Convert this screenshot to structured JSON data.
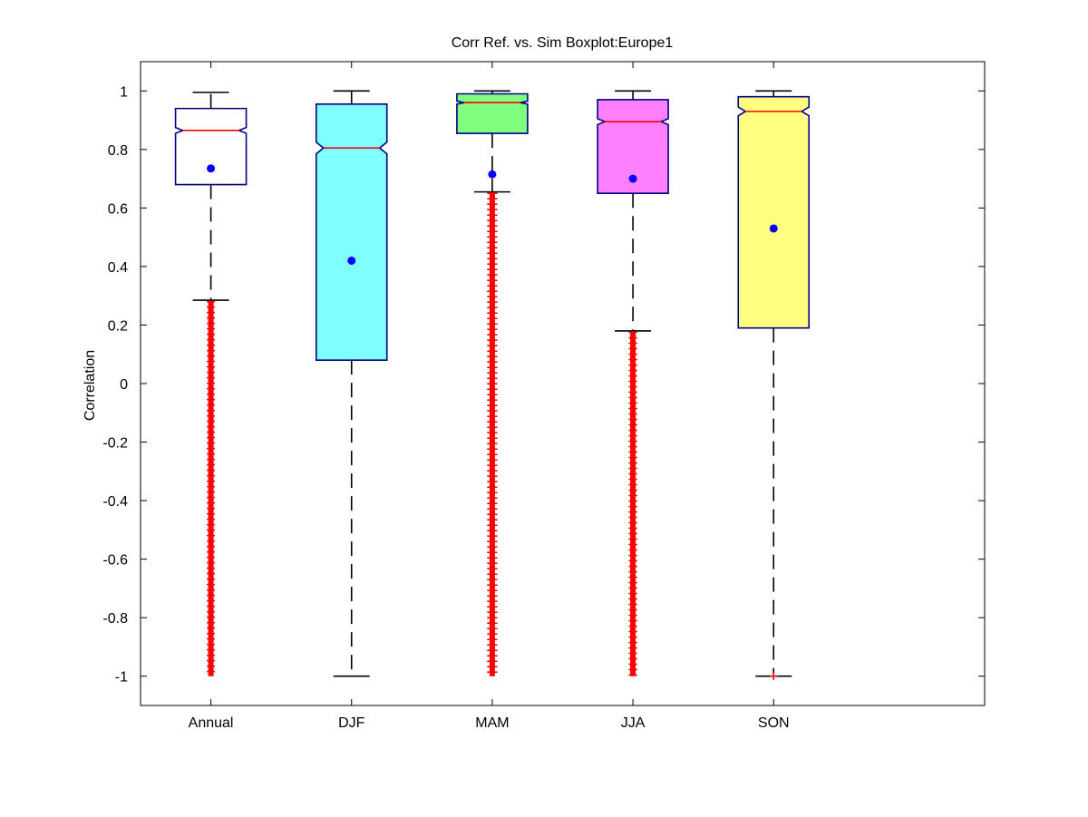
{
  "chart_data": {
    "type": "boxplot",
    "title": "Corr Ref. vs. Sim Boxplot:Europe1",
    "xlabel": "",
    "ylabel": "Correlation",
    "ylim": [
      -1.1,
      1.1
    ],
    "yticks": [
      -1,
      -0.8,
      -0.6,
      -0.4,
      -0.2,
      0,
      0.2,
      0.4,
      0.6,
      0.8,
      1
    ],
    "ytick_labels": [
      "-1",
      "-0.8",
      "-0.6",
      "-0.4",
      "-0.2",
      "0",
      "0.2",
      "0.4",
      "0.6",
      "0.8",
      "1"
    ],
    "grid": false,
    "notched": true,
    "categories": [
      "Annual",
      "DJF",
      "MAM",
      "JJA",
      "SON"
    ],
    "boxes": [
      {
        "category": "Annual",
        "fill": "#ffffff",
        "q1": 0.68,
        "median": 0.865,
        "q3": 0.94,
        "whisker_low": 0.285,
        "whisker_high": 0.995,
        "mean": 0.735,
        "notch_low": 0.855,
        "notch_high": 0.875,
        "outlier_range": [
          -1.0,
          0.28
        ]
      },
      {
        "category": "DJF",
        "fill": "#80ffff",
        "q1": 0.08,
        "median": 0.805,
        "q3": 0.955,
        "whisker_low": -1.0,
        "whisker_high": 1.0,
        "mean": 0.42,
        "notch_low": 0.785,
        "notch_high": 0.825,
        "outlier_range": null
      },
      {
        "category": "MAM",
        "fill": "#80ff80",
        "q1": 0.855,
        "median": 0.96,
        "q3": 0.99,
        "whisker_low": 0.655,
        "whisker_high": 1.0,
        "mean": 0.715,
        "notch_low": 0.955,
        "notch_high": 0.965,
        "outlier_range": [
          -1.0,
          0.65
        ]
      },
      {
        "category": "JJA",
        "fill": "#ff80ff",
        "q1": 0.65,
        "median": 0.895,
        "q3": 0.97,
        "whisker_low": 0.18,
        "whisker_high": 1.0,
        "mean": 0.7,
        "notch_low": 0.885,
        "notch_high": 0.905,
        "outlier_range": [
          -1.0,
          0.175
        ]
      },
      {
        "category": "SON",
        "fill": "#ffff80",
        "q1": 0.19,
        "median": 0.93,
        "q3": 0.98,
        "whisker_low": -1.0,
        "whisker_high": 1.0,
        "mean": 0.53,
        "notch_low": 0.915,
        "notch_high": 0.945,
        "outlier_range": [
          -1.0,
          -1.0
        ]
      }
    ],
    "colors": {
      "box_edge": "#000080",
      "median": "#ff0000",
      "whisker": "#000000",
      "outlier": "#ff0000",
      "mean_marker": "#0000ff",
      "axes": "#000000"
    }
  }
}
